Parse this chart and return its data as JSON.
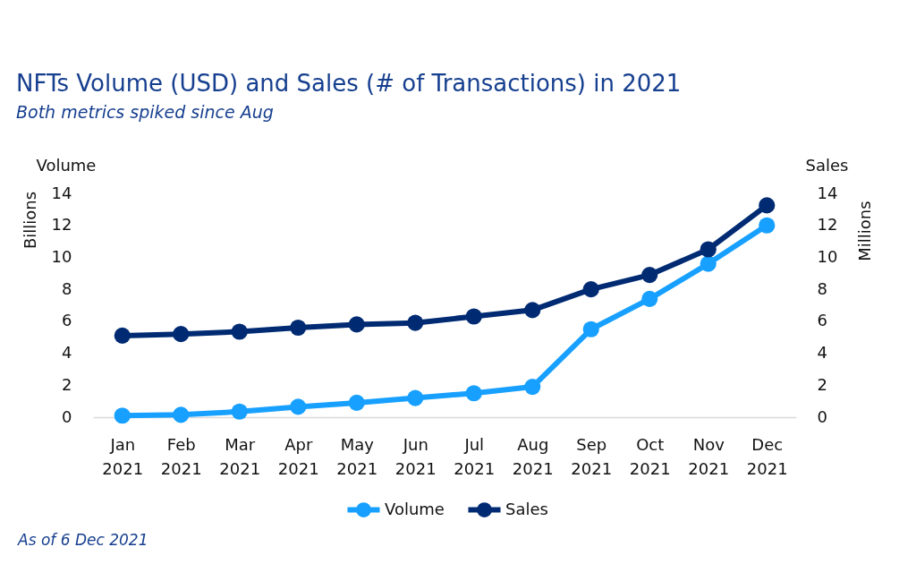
{
  "chart_data": {
    "type": "line",
    "title": "NFTs Volume (USD) and Sales (# of Transactions) in 2021",
    "subtitle": "Both metrics spiked since Aug",
    "ylabel": "Volume",
    "y2label": "Sales",
    "annotations": [
      "Billions",
      "Millions",
      "As of 6 Dec 2021"
    ],
    "categories": [
      "Jan 2021",
      "Feb 2021",
      "Mar 2021",
      "Apr 2021",
      "May 2021",
      "Jun 2021",
      "Jul 2021",
      "Aug 2021",
      "Sep 2021",
      "Oct 2021",
      "Nov 2021",
      "Dec 2021"
    ],
    "series": [
      {
        "name": "Volume",
        "color": "#17a0ff",
        "values": [
          0.1,
          0.15,
          0.35,
          0.65,
          0.9,
          1.2,
          1.5,
          1.9,
          5.5,
          7.4,
          9.6,
          12.0
        ]
      },
      {
        "name": "Sales",
        "color": "#002b73",
        "axis": "y2",
        "values": [
          5.1,
          5.2,
          5.35,
          5.6,
          5.8,
          5.9,
          6.3,
          6.7,
          8.0,
          8.9,
          10.5,
          13.25
        ]
      }
    ],
    "ylim": [
      0,
      14
    ],
    "yticks": [
      0,
      2,
      4,
      6,
      8,
      10,
      12,
      14
    ],
    "y2lim": [
      0,
      14
    ],
    "y2ticks": [
      0,
      2,
      4,
      6,
      8,
      10,
      12,
      14
    ],
    "marker": "circle",
    "legend": "bottom"
  }
}
